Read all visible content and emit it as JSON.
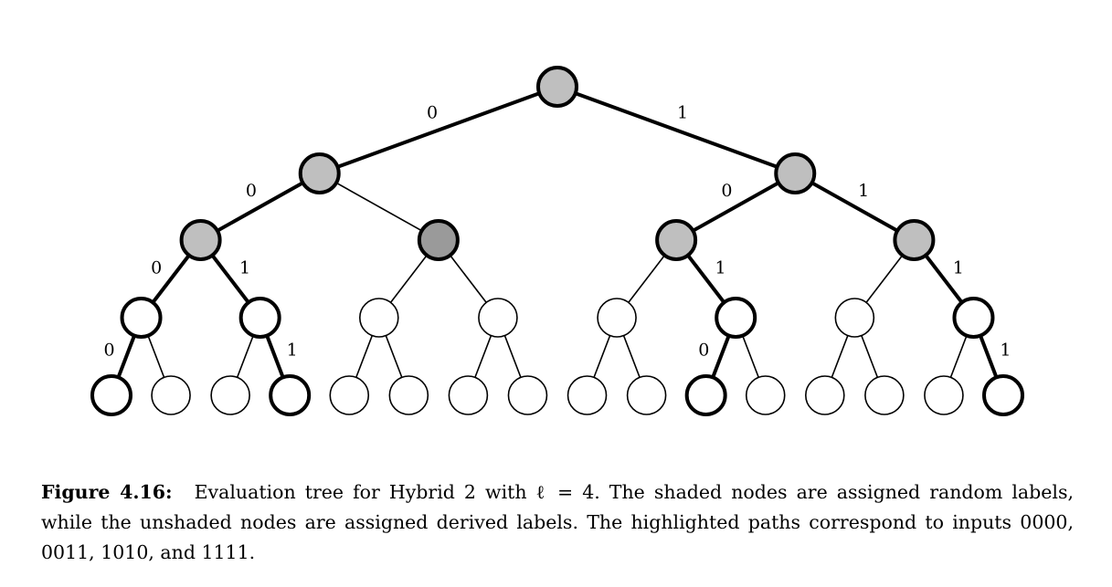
{
  "figure": {
    "label": "Figure 4.16:",
    "caption": "Evaluation tree for Hybrid 2 with ℓ = 4. The shaded nodes are assigned random labels, while the unshaded nodes are assigned derived labels. The highlighted paths correspond to inputs 0000, 0011, 1010, and 1111."
  },
  "tree": {
    "depth": 4,
    "highlighted_paths": [
      "0000",
      "0011",
      "1010",
      "1111"
    ],
    "node_fill": {
      "random_light": "#bfbfbf",
      "random_dark": "#9a9a9a",
      "derived": "#ffffff"
    },
    "nodes": [
      {
        "id": "root",
        "fill": "random_light"
      },
      {
        "id": "0",
        "fill": "random_light"
      },
      {
        "id": "1",
        "fill": "random_light"
      },
      {
        "id": "00",
        "fill": "random_light"
      },
      {
        "id": "01",
        "fill": "random_dark"
      },
      {
        "id": "10",
        "fill": "random_light"
      },
      {
        "id": "11",
        "fill": "random_light"
      },
      {
        "id": "000",
        "fill": "derived"
      },
      {
        "id": "001",
        "fill": "derived"
      },
      {
        "id": "010",
        "fill": "derived"
      },
      {
        "id": "011",
        "fill": "derived"
      },
      {
        "id": "100",
        "fill": "derived"
      },
      {
        "id": "101",
        "fill": "derived"
      },
      {
        "id": "110",
        "fill": "derived"
      },
      {
        "id": "111",
        "fill": "derived"
      },
      {
        "id": "0000",
        "fill": "derived"
      },
      {
        "id": "0001",
        "fill": "derived"
      },
      {
        "id": "0010",
        "fill": "derived"
      },
      {
        "id": "0011",
        "fill": "derived"
      },
      {
        "id": "0100",
        "fill": "derived"
      },
      {
        "id": "0101",
        "fill": "derived"
      },
      {
        "id": "0110",
        "fill": "derived"
      },
      {
        "id": "0111",
        "fill": "derived"
      },
      {
        "id": "1000",
        "fill": "derived"
      },
      {
        "id": "1001",
        "fill": "derived"
      },
      {
        "id": "1010",
        "fill": "derived"
      },
      {
        "id": "1011",
        "fill": "derived"
      },
      {
        "id": "1100",
        "fill": "derived"
      },
      {
        "id": "1101",
        "fill": "derived"
      },
      {
        "id": "1110",
        "fill": "derived"
      },
      {
        "id": "1111",
        "fill": "derived"
      }
    ],
    "edges": [
      {
        "from": "root",
        "to": "0",
        "label": "0"
      },
      {
        "from": "root",
        "to": "1",
        "label": "1"
      },
      {
        "from": "0",
        "to": "00",
        "label": "0"
      },
      {
        "from": "0",
        "to": "01",
        "label": ""
      },
      {
        "from": "1",
        "to": "10",
        "label": "0"
      },
      {
        "from": "1",
        "to": "11",
        "label": "1"
      },
      {
        "from": "00",
        "to": "000",
        "label": "0"
      },
      {
        "from": "00",
        "to": "001",
        "label": "1"
      },
      {
        "from": "01",
        "to": "010",
        "label": ""
      },
      {
        "from": "01",
        "to": "011",
        "label": ""
      },
      {
        "from": "10",
        "to": "100",
        "label": ""
      },
      {
        "from": "10",
        "to": "101",
        "label": "1"
      },
      {
        "from": "11",
        "to": "110",
        "label": ""
      },
      {
        "from": "11",
        "to": "111",
        "label": "1"
      },
      {
        "from": "000",
        "to": "0000",
        "label": "0"
      },
      {
        "from": "000",
        "to": "0001",
        "label": ""
      },
      {
        "from": "001",
        "to": "0010",
        "label": ""
      },
      {
        "from": "001",
        "to": "0011",
        "label": "1"
      },
      {
        "from": "010",
        "to": "0100",
        "label": ""
      },
      {
        "from": "010",
        "to": "0101",
        "label": ""
      },
      {
        "from": "011",
        "to": "0110",
        "label": ""
      },
      {
        "from": "011",
        "to": "0111",
        "label": ""
      },
      {
        "from": "100",
        "to": "1000",
        "label": ""
      },
      {
        "from": "100",
        "to": "1001",
        "label": ""
      },
      {
        "from": "101",
        "to": "1010",
        "label": "0"
      },
      {
        "from": "101",
        "to": "1011",
        "label": ""
      },
      {
        "from": "110",
        "to": "1100",
        "label": ""
      },
      {
        "from": "110",
        "to": "1101",
        "label": ""
      },
      {
        "from": "111",
        "to": "1110",
        "label": ""
      },
      {
        "from": "111",
        "to": "1111",
        "label": "1"
      }
    ]
  }
}
